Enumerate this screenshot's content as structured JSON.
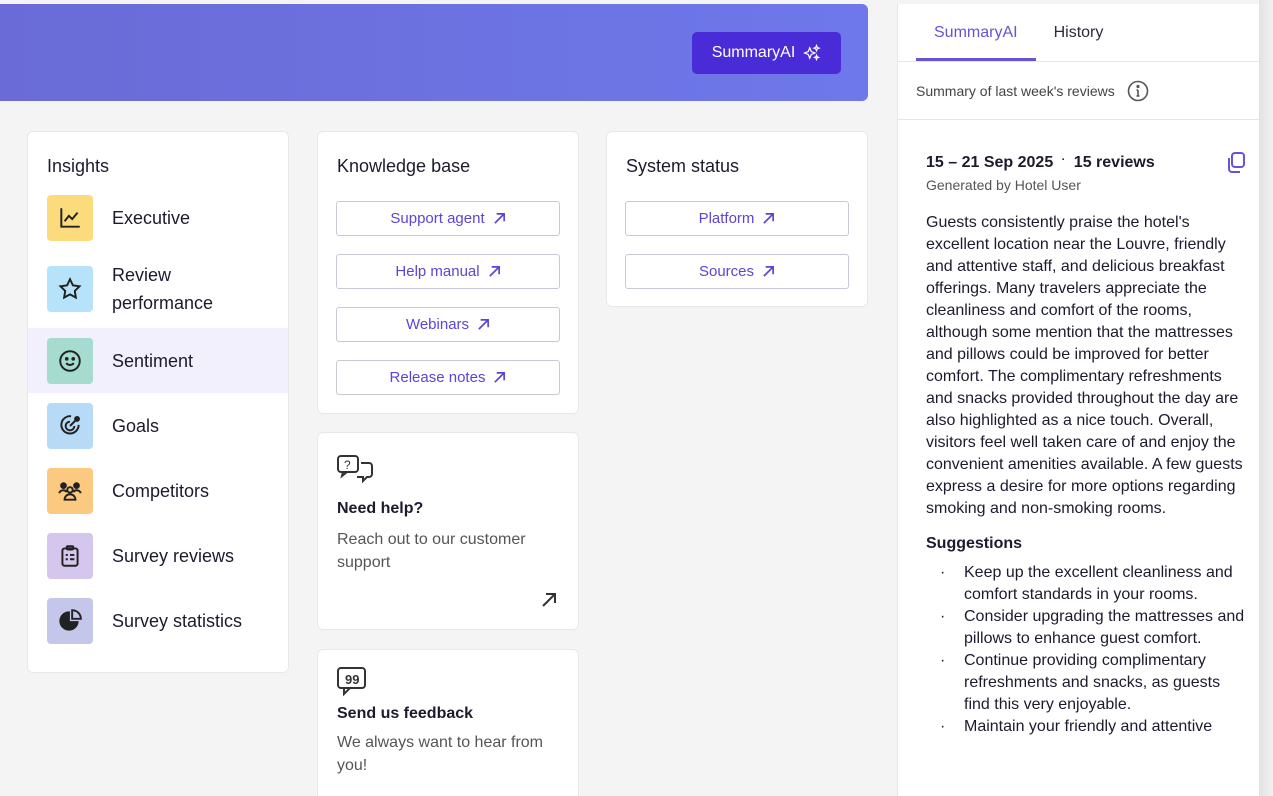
{
  "header": {
    "ai_button": "SummaryAI"
  },
  "insights": {
    "title": "Insights",
    "items": [
      {
        "label": "Executive",
        "icon": "line-chart-icon",
        "color": "#fbdb7c"
      },
      {
        "label": "Review performance",
        "icon": "star-icon",
        "color": "#b6e3f9"
      },
      {
        "label": "Sentiment",
        "icon": "smiley-icon",
        "color": "#a6dcd0"
      },
      {
        "label": "Goals",
        "icon": "target-icon",
        "color": "#b7dbf7"
      },
      {
        "label": "Competitors",
        "icon": "users-icon",
        "color": "#fbc97f"
      },
      {
        "label": "Survey reviews",
        "icon": "clipboard-icon",
        "color": "#d4c6ec"
      },
      {
        "label": "Survey statistics",
        "icon": "pie-chart-icon",
        "color": "#c4c7ea"
      }
    ]
  },
  "knowledge": {
    "title": "Knowledge base",
    "links": [
      "Support agent",
      "Help manual",
      "Webinars",
      "Release notes"
    ]
  },
  "status": {
    "title": "System status",
    "links": [
      "Platform",
      "Sources"
    ]
  },
  "help": {
    "title": "Need help?",
    "text": "Reach out to our customer support"
  },
  "feedback": {
    "title": "Send us feedback",
    "text": "We always want to hear from you!"
  },
  "panel": {
    "tabs": [
      "SummaryAI",
      "History"
    ],
    "subtitle": "Summary of last week's reviews",
    "date_range": "15 – 21 Sep 2025",
    "review_count": "15 reviews",
    "generated_by": "Generated by Hotel User",
    "summary": "Guests consistently praise the hotel's excellent location near the Louvre, friendly and attentive staff, and delicious breakfast offerings. Many travelers appreciate the cleanliness and comfort of the rooms, although some mention that the mattresses and pillows could be improved for better comfort. The complimentary refreshments and snacks provided throughout the day are also highlighted as a nice touch. Overall, visitors feel well taken care of and enjoy the convenient amenities available. A few guests express a desire for more options regarding smoking and non-smoking rooms.",
    "suggestions_title": "Suggestions",
    "suggestions": [
      "Keep up the excellent cleanliness and comfort standards in your rooms.",
      "Consider upgrading the mattresses and pillows to enhance guest comfort.",
      "Continue providing complimentary refreshments and snacks, as guests find this very enjoyable.",
      "Maintain your friendly and attentive"
    ]
  },
  "colors": {
    "accent": "#4a2bd8",
    "link": "#5b45d6",
    "active_row": "#f1f0fc"
  }
}
